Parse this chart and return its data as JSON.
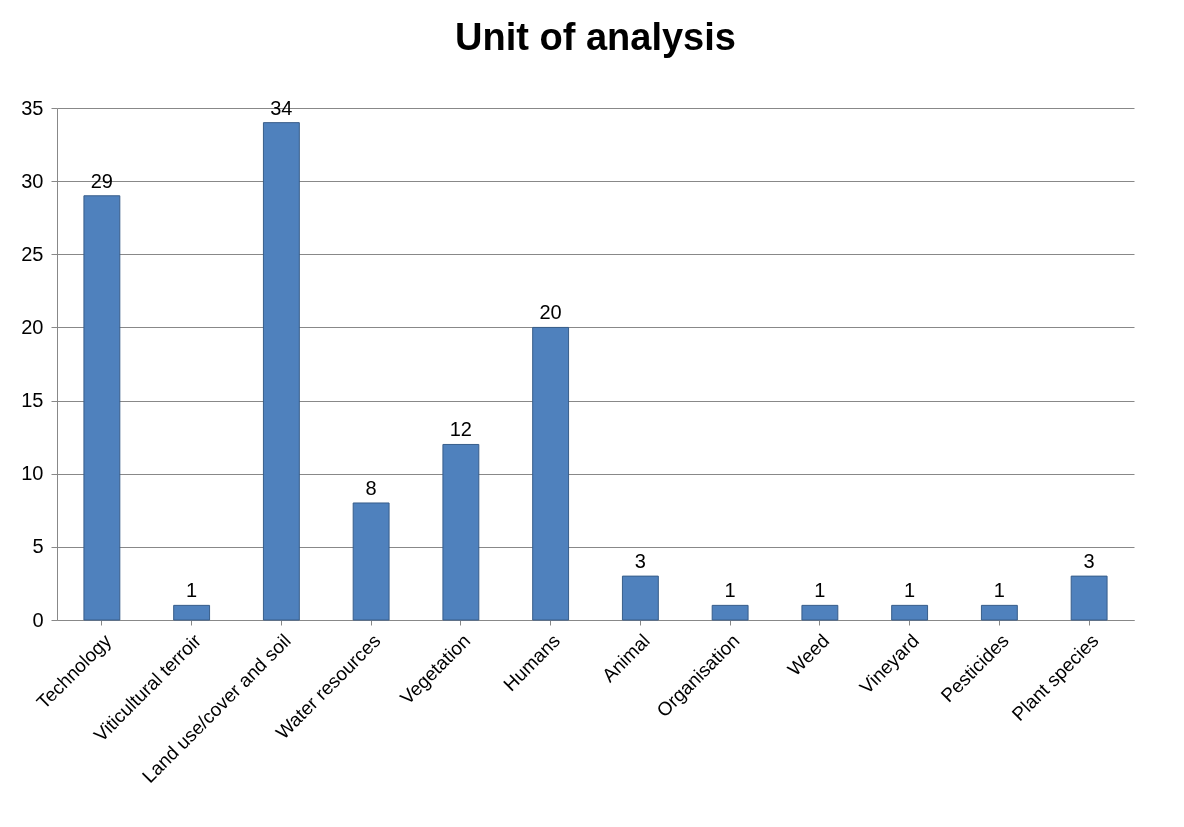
{
  "chart_data": {
    "type": "bar",
    "title": "Unit of analysis",
    "categories": [
      "Technology",
      "Viticultural terroir",
      "Land use/cover and soil",
      "Water resources",
      "Vegetation",
      "Humans",
      "Animal",
      "Organisation",
      "Weed",
      "Vineyard",
      "Pesticides",
      "Plant species"
    ],
    "values": [
      29,
      1,
      34,
      8,
      12,
      20,
      3,
      1,
      1,
      1,
      1,
      3
    ],
    "color": "#4f81bd",
    "ylim": [
      0,
      35
    ],
    "yticks": [
      0,
      5,
      10,
      15,
      20,
      25,
      30,
      35
    ],
    "grid": "y",
    "data_labels": true
  }
}
